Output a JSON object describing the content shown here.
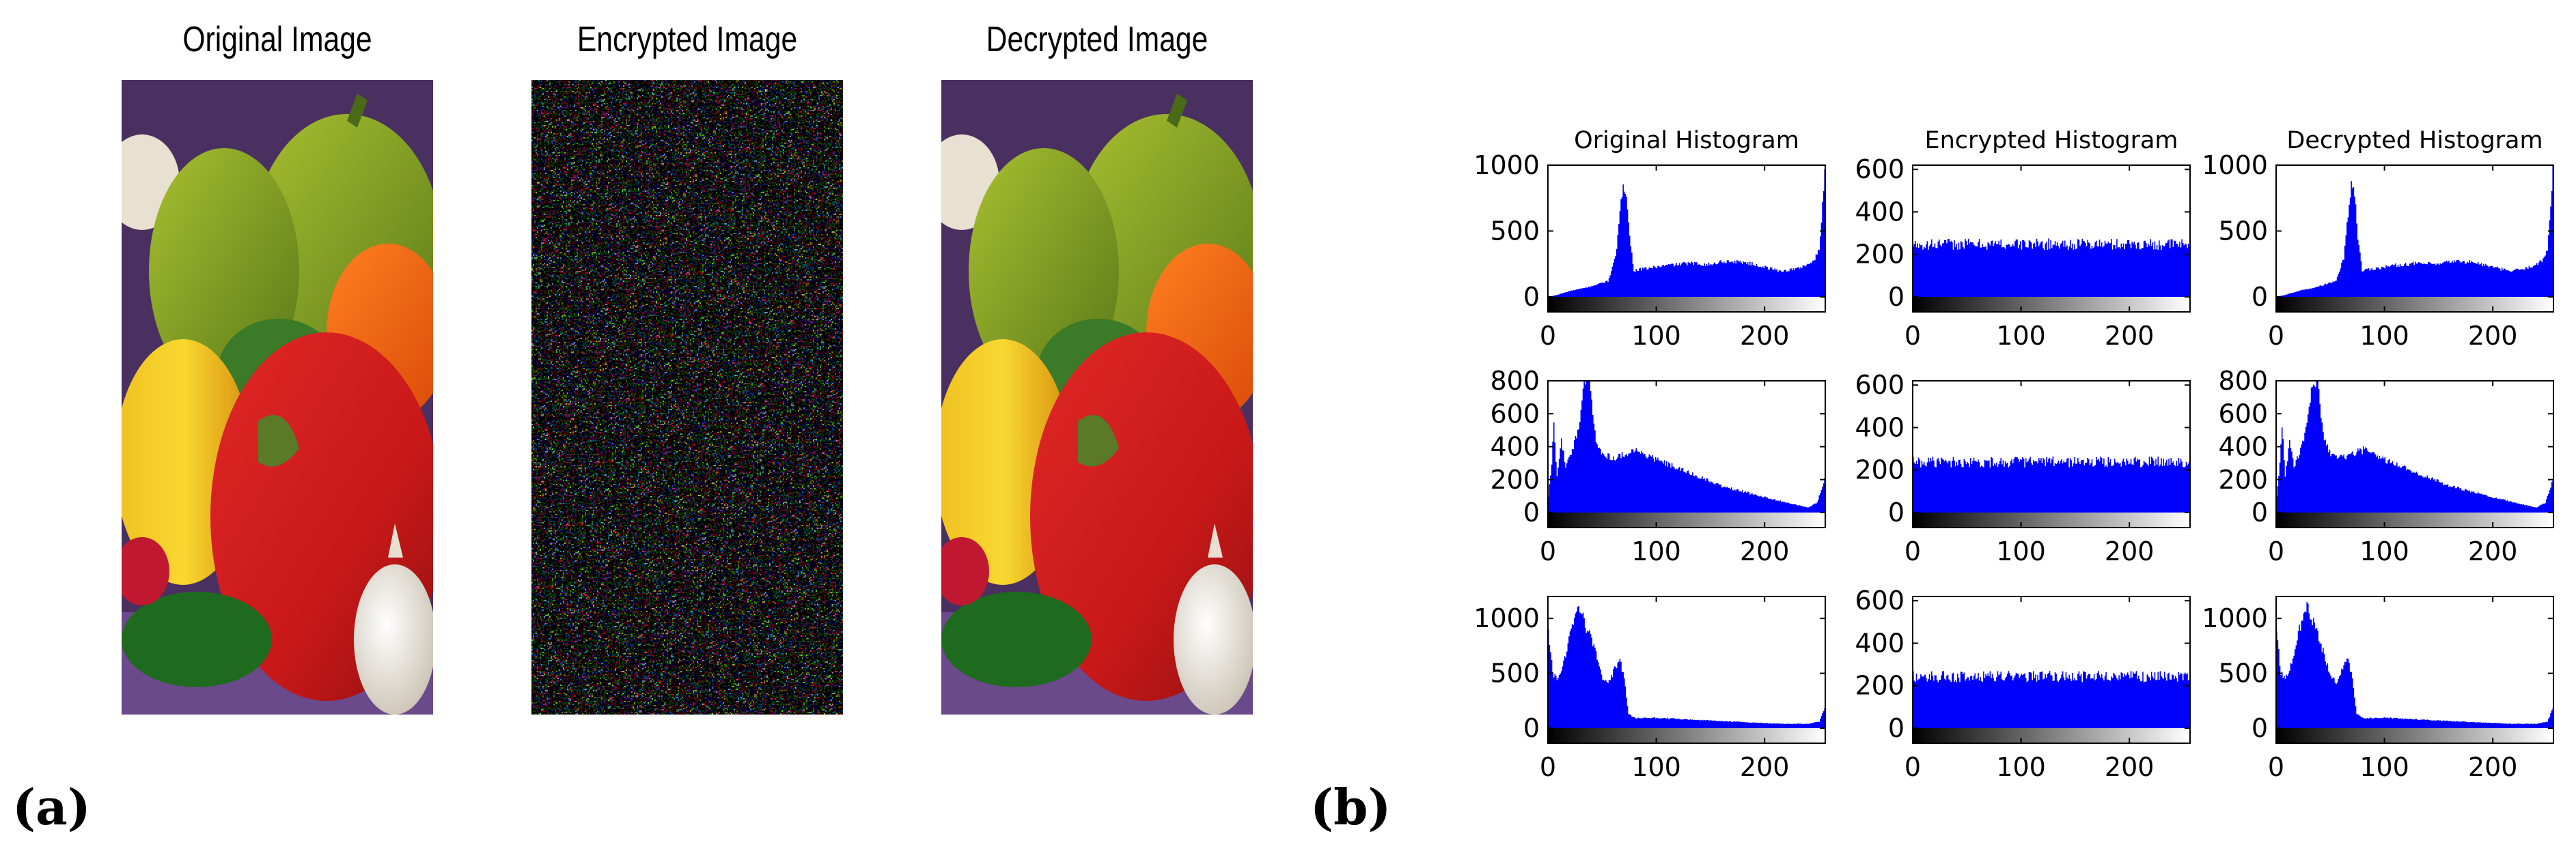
{
  "panel_a": {
    "label": "(a)",
    "images": [
      {
        "title": "Original Image",
        "kind": "peppers"
      },
      {
        "title": "Encrypted Image",
        "kind": "noise"
      },
      {
        "title": "Decrypted Image",
        "kind": "peppers"
      }
    ]
  },
  "panel_b": {
    "label": "(b)"
  },
  "colors": {
    "bars": "#0000ff",
    "axis": "#000000"
  },
  "chart_data": [
    {
      "type": "bar",
      "title": "Original Histogram",
      "channel": "red",
      "x_ticks": [
        0,
        100,
        200
      ],
      "y_ticks": [
        0,
        500,
        1000
      ],
      "xlim": [
        0,
        255
      ],
      "ylim": [
        0,
        1000
      ],
      "profile": [
        [
          0,
          0
        ],
        [
          8,
          15
        ],
        [
          20,
          45
        ],
        [
          35,
          70
        ],
        [
          55,
          120
        ],
        [
          62,
          300
        ],
        [
          67,
          700
        ],
        [
          69,
          870
        ],
        [
          72,
          800
        ],
        [
          75,
          450
        ],
        [
          79,
          200
        ],
        [
          90,
          215
        ],
        [
          110,
          240
        ],
        [
          130,
          255
        ],
        [
          150,
          245
        ],
        [
          160,
          270
        ],
        [
          180,
          265
        ],
        [
          200,
          225
        ],
        [
          215,
          195
        ],
        [
          230,
          215
        ],
        [
          245,
          270
        ],
        [
          250,
          360
        ],
        [
          253,
          700
        ],
        [
          255,
          1000
        ]
      ]
    },
    {
      "type": "bar",
      "title": "Encrypted Histogram",
      "channel": "red",
      "x_ticks": [
        0,
        100,
        200
      ],
      "y_ticks": [
        0,
        200,
        400,
        600
      ],
      "xlim": [
        0,
        255
      ],
      "ylim": [
        0,
        620
      ],
      "profile": [
        [
          0,
          248
        ],
        [
          255,
          248
        ]
      ]
    },
    {
      "type": "bar",
      "title": "Decrypted Histogram",
      "channel": "red",
      "x_ticks": [
        0,
        100,
        200
      ],
      "y_ticks": [
        0,
        500,
        1000
      ],
      "xlim": [
        0,
        255
      ],
      "ylim": [
        0,
        1000
      ],
      "profile": [
        [
          0,
          0
        ],
        [
          8,
          15
        ],
        [
          20,
          45
        ],
        [
          35,
          70
        ],
        [
          55,
          120
        ],
        [
          62,
          300
        ],
        [
          67,
          700
        ],
        [
          69,
          870
        ],
        [
          72,
          800
        ],
        [
          75,
          450
        ],
        [
          79,
          200
        ],
        [
          90,
          215
        ],
        [
          110,
          240
        ],
        [
          130,
          255
        ],
        [
          150,
          245
        ],
        [
          160,
          270
        ],
        [
          180,
          265
        ],
        [
          200,
          225
        ],
        [
          215,
          195
        ],
        [
          230,
          215
        ],
        [
          245,
          270
        ],
        [
          250,
          360
        ],
        [
          253,
          700
        ],
        [
          255,
          1000
        ]
      ]
    },
    {
      "type": "bar",
      "title": "",
      "channel": "green",
      "x_ticks": [
        0,
        100,
        200
      ],
      "y_ticks": [
        0,
        200,
        400,
        600,
        800
      ],
      "xlim": [
        0,
        255
      ],
      "ylim": [
        0,
        800
      ],
      "profile": [
        [
          0,
          100
        ],
        [
          3,
          300
        ],
        [
          5,
          530
        ],
        [
          8,
          220
        ],
        [
          12,
          430
        ],
        [
          16,
          280
        ],
        [
          22,
          380
        ],
        [
          28,
          520
        ],
        [
          31,
          680
        ],
        [
          34,
          800
        ],
        [
          38,
          800
        ],
        [
          41,
          600
        ],
        [
          44,
          430
        ],
        [
          50,
          360
        ],
        [
          60,
          330
        ],
        [
          80,
          380
        ],
        [
          100,
          320
        ],
        [
          130,
          240
        ],
        [
          160,
          160
        ],
        [
          190,
          110
        ],
        [
          220,
          60
        ],
        [
          240,
          30
        ],
        [
          248,
          60
        ],
        [
          252,
          140
        ],
        [
          255,
          200
        ]
      ]
    },
    {
      "type": "bar",
      "title": "",
      "channel": "green",
      "x_ticks": [
        0,
        100,
        200
      ],
      "y_ticks": [
        0,
        200,
        400,
        600
      ],
      "xlim": [
        0,
        255
      ],
      "ylim": [
        0,
        620
      ],
      "profile": [
        [
          0,
          238
        ],
        [
          255,
          238
        ]
      ]
    },
    {
      "type": "bar",
      "title": "",
      "channel": "green",
      "x_ticks": [
        0,
        100,
        200
      ],
      "y_ticks": [
        0,
        200,
        400,
        600,
        800
      ],
      "xlim": [
        0,
        255
      ],
      "ylim": [
        0,
        800
      ],
      "profile": [
        [
          0,
          100
        ],
        [
          3,
          300
        ],
        [
          5,
          530
        ],
        [
          8,
          220
        ],
        [
          12,
          430
        ],
        [
          16,
          280
        ],
        [
          22,
          380
        ],
        [
          28,
          520
        ],
        [
          31,
          680
        ],
        [
          34,
          800
        ],
        [
          38,
          800
        ],
        [
          41,
          600
        ],
        [
          44,
          430
        ],
        [
          50,
          360
        ],
        [
          60,
          330
        ],
        [
          80,
          380
        ],
        [
          100,
          320
        ],
        [
          130,
          240
        ],
        [
          160,
          160
        ],
        [
          190,
          110
        ],
        [
          220,
          60
        ],
        [
          240,
          30
        ],
        [
          248,
          60
        ],
        [
          252,
          140
        ],
        [
          255,
          200
        ]
      ]
    },
    {
      "type": "bar",
      "title": "",
      "channel": "blue",
      "x_ticks": [
        0,
        100,
        200
      ],
      "y_ticks": [
        0,
        500,
        1000
      ],
      "xlim": [
        0,
        255
      ],
      "ylim": [
        0,
        1200
      ],
      "profile": [
        [
          0,
          900
        ],
        [
          4,
          500
        ],
        [
          8,
          450
        ],
        [
          14,
          600
        ],
        [
          20,
          850
        ],
        [
          25,
          1050
        ],
        [
          28,
          1150
        ],
        [
          32,
          1000
        ],
        [
          38,
          850
        ],
        [
          44,
          680
        ],
        [
          50,
          460
        ],
        [
          56,
          420
        ],
        [
          62,
          560
        ],
        [
          66,
          620
        ],
        [
          70,
          450
        ],
        [
          74,
          130
        ],
        [
          80,
          90
        ],
        [
          100,
          95
        ],
        [
          140,
          75
        ],
        [
          180,
          55
        ],
        [
          215,
          40
        ],
        [
          240,
          40
        ],
        [
          250,
          60
        ],
        [
          255,
          180
        ]
      ]
    },
    {
      "type": "bar",
      "title": "",
      "channel": "blue",
      "x_ticks": [
        0,
        100,
        200
      ],
      "y_ticks": [
        0,
        200,
        400,
        600
      ],
      "xlim": [
        0,
        255
      ],
      "ylim": [
        0,
        620
      ],
      "profile": [
        [
          0,
          243
        ],
        [
          255,
          243
        ]
      ]
    },
    {
      "type": "bar",
      "title": "",
      "channel": "blue",
      "x_ticks": [
        0,
        100,
        200
      ],
      "y_ticks": [
        0,
        500,
        1000
      ],
      "xlim": [
        0,
        255
      ],
      "ylim": [
        0,
        1200
      ],
      "profile": [
        [
          0,
          900
        ],
        [
          4,
          500
        ],
        [
          8,
          450
        ],
        [
          14,
          600
        ],
        [
          20,
          850
        ],
        [
          25,
          1050
        ],
        [
          28,
          1150
        ],
        [
          32,
          1000
        ],
        [
          38,
          850
        ],
        [
          44,
          680
        ],
        [
          50,
          460
        ],
        [
          56,
          420
        ],
        [
          62,
          560
        ],
        [
          66,
          620
        ],
        [
          70,
          450
        ],
        [
          74,
          130
        ],
        [
          80,
          90
        ],
        [
          100,
          95
        ],
        [
          140,
          75
        ],
        [
          180,
          55
        ],
        [
          215,
          40
        ],
        [
          240,
          40
        ],
        [
          250,
          60
        ],
        [
          255,
          180
        ]
      ]
    }
  ]
}
